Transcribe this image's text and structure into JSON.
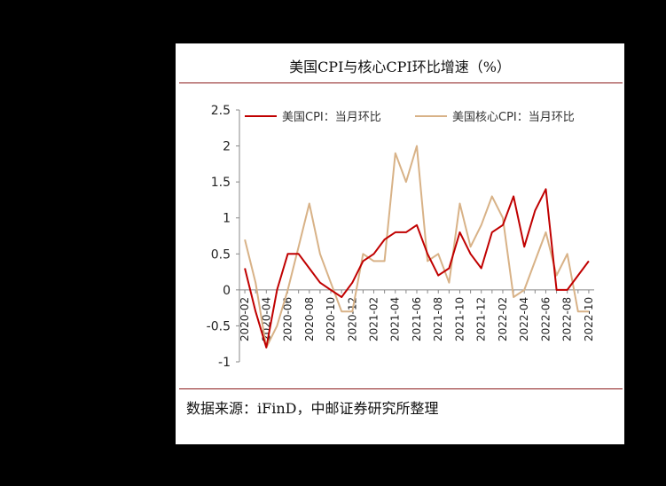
{
  "title": "美国CPI与核心CPI环比增速（%）",
  "source": "数据来源：iFinD，中邮证券研究所整理",
  "chart_data": {
    "type": "line",
    "title": "美国CPI与核心CPI环比增速（%）",
    "xlabel": "",
    "ylabel": "",
    "ylim": [
      -1,
      2.5
    ],
    "yticks": [
      -1,
      -0.5,
      0,
      0.5,
      1,
      1.5,
      2,
      2.5
    ],
    "ytick_labels": [
      "-1",
      "-0.5",
      "0",
      "0.5",
      "1",
      "1.5",
      "2",
      "2.5"
    ],
    "x": [
      "2020-02",
      "2020-03",
      "2020-04",
      "2020-05",
      "2020-06",
      "2020-07",
      "2020-08",
      "2020-09",
      "2020-10",
      "2020-11",
      "2020-12",
      "2021-01",
      "2021-02",
      "2021-03",
      "2021-04",
      "2021-05",
      "2021-06",
      "2021-07",
      "2021-08",
      "2021-09",
      "2021-10",
      "2021-11",
      "2021-12",
      "2022-01",
      "2022-02",
      "2022-03",
      "2022-04",
      "2022-05",
      "2022-06",
      "2022-07",
      "2022-08",
      "2022-09",
      "2022-10"
    ],
    "xtick_labels": [
      "2020-02",
      "2020-04",
      "2020-06",
      "2020-08",
      "2020-10",
      "2020-12",
      "2021-02",
      "2021-04",
      "2021-06",
      "2021-08",
      "2021-10",
      "2021-12",
      "2022-02",
      "2022-04",
      "2022-06",
      "2022-08",
      "2022-10"
    ],
    "grid": false,
    "legend_position": "top",
    "series": [
      {
        "name": "美国CPI：当月环比",
        "color": "#c00000",
        "values": [
          0.3,
          -0.3,
          -0.8,
          0.0,
          0.5,
          0.5,
          0.3,
          0.1,
          0.0,
          -0.1,
          0.1,
          0.4,
          0.5,
          0.7,
          0.8,
          0.8,
          0.9,
          0.5,
          0.2,
          0.3,
          0.8,
          0.5,
          0.3,
          0.8,
          0.9,
          1.3,
          0.6,
          1.1,
          1.4,
          0.0,
          0.0,
          0.2,
          0.4
        ]
      },
      {
        "name": "美国核心CPI：当月环比",
        "color": "#d8b287",
        "values": [
          0.7,
          0.1,
          -0.8,
          -0.5,
          0.0,
          0.6,
          1.2,
          0.5,
          0.1,
          -0.3,
          -0.3,
          0.5,
          0.4,
          0.4,
          1.9,
          1.5,
          2.0,
          0.4,
          0.5,
          0.1,
          1.2,
          0.6,
          0.9,
          1.3,
          1.0,
          -0.1,
          0.0,
          0.4,
          0.8,
          0.2,
          0.5,
          -0.3,
          -0.3
        ]
      }
    ]
  }
}
